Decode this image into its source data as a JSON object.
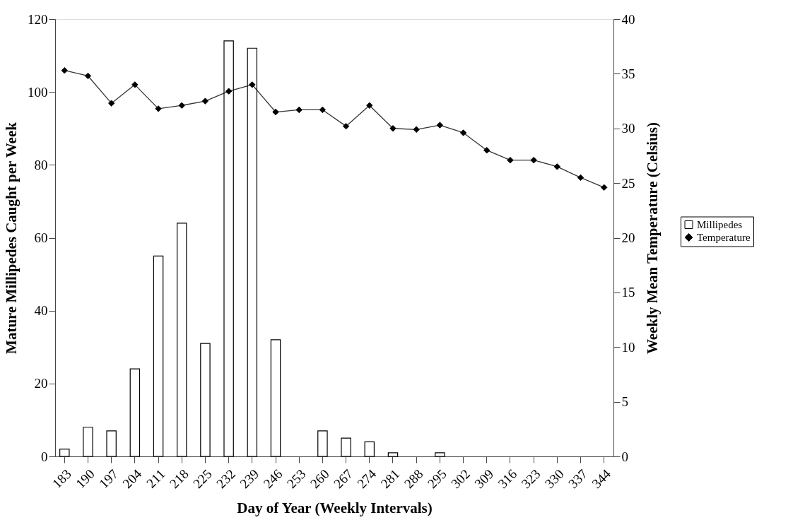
{
  "chart_data": {
    "type": "bar",
    "xlabel": "Day of Year (Weekly Intervals)",
    "ylabel": "Mature Millipedes Caught per Week",
    "y2label": "Weekly Mean Temperature (Celsius)",
    "categories": [
      "183",
      "190",
      "197",
      "204",
      "211",
      "218",
      "225",
      "232",
      "239",
      "246",
      "253",
      "260",
      "267",
      "274",
      "281",
      "288",
      "295",
      "302",
      "309",
      "316",
      "323",
      "330",
      "337",
      "344"
    ],
    "series": [
      {
        "name": "Millipedes",
        "type": "bar",
        "color": "#ffffff",
        "values": [
          2,
          8,
          7,
          24,
          55,
          64,
          31,
          114,
          112,
          32,
          0,
          7,
          5,
          4,
          1,
          0,
          1,
          0,
          0,
          0,
          0,
          0,
          0,
          0
        ]
      },
      {
        "name": "Temperature",
        "type": "line",
        "axis": "y2",
        "color": "#000000",
        "marker": "diamond",
        "line_style": "solid",
        "values": [
          35.3,
          34.8,
          32.3,
          34.0,
          31.8,
          32.1,
          32.5,
          33.4,
          34.0,
          31.5,
          31.7,
          31.7,
          30.2,
          32.1,
          30.0,
          29.9,
          30.3,
          29.6,
          28.0,
          27.1,
          27.1,
          26.5,
          25.5,
          24.6
        ]
      }
    ],
    "ylim": [
      0,
      120
    ],
    "yticks": [
      0,
      20,
      40,
      60,
      80,
      100,
      120
    ],
    "y2lim": [
      0,
      40
    ],
    "y2ticks": [
      0,
      5,
      10,
      15,
      20,
      25,
      30,
      35,
      40
    ],
    "legend": "right",
    "grid": false
  }
}
